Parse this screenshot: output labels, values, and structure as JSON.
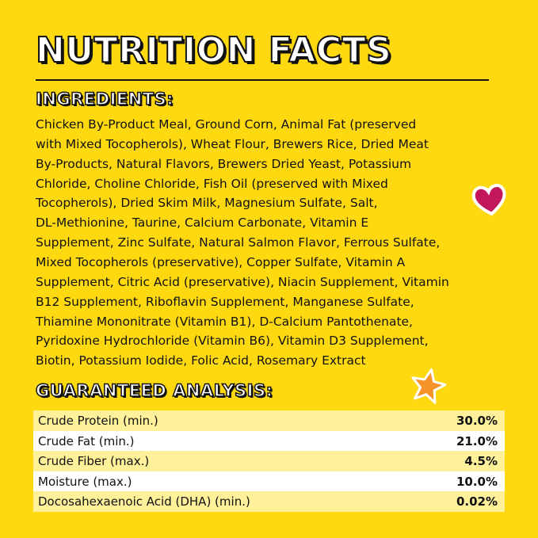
{
  "header": {
    "title": "NUTRITION FACTS"
  },
  "ingredients": {
    "heading": "INGREDIENTS:",
    "lines": [
      "Chicken By-Product Meal, Ground Corn, Animal Fat (preserved",
      "with Mixed Tocopherols), Wheat Flour, Brewers Rice,  Dried Meat",
      "By-Products, Natural Flavors, Brewers Dried Yeast, Potassium",
      "Chloride, Choline Chloride, Fish Oil (preserved with Mixed",
      "Tocopherols), Dried Skim Milk, Magnesium Sulfate, Salt,",
      "DL-Methionine, Taurine, Calcium Carbonate, Vitamin E",
      "Supplement, Zinc Sulfate, Natural Salmon Flavor, Ferrous Sulfate,",
      "Mixed Tocopherols (preservative), Copper Sulfate, Vitamin A",
      "Supplement, Citric Acid (preservative), Niacin Supplement, Vitamin",
      "B12 Supplement, Riboflavin Supplement, Manganese Sulfate,",
      "Thiamine Mononitrate (Vitamin B1), D-Calcium Pantothenate,",
      "Pyridoxine Hydrochloride (Vitamin B6), Vitamin D3 Supplement,",
      "Biotin, Potassium Iodide, Folic Acid, Rosemary Extract"
    ]
  },
  "analysis": {
    "heading": "GUARANTEED ANALYSIS:",
    "rows": [
      [
        "Crude Protein (min.)",
        "30.0%"
      ],
      [
        "Crude Fat (min.)",
        "21.0%"
      ],
      [
        "Crude Fiber (max.)",
        "4.5%"
      ],
      [
        "Moisture (max.)",
        "10.0%"
      ],
      [
        "Docosahexaenoic Acid (DHA) (min.)",
        "0.02%"
      ]
    ]
  }
}
